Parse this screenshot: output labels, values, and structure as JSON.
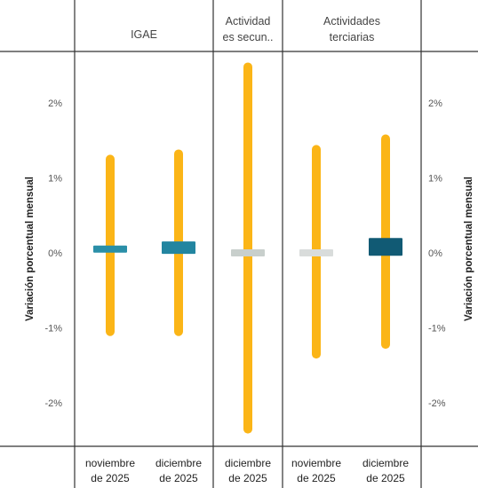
{
  "chart_data": {
    "type": "range-bar",
    "ylabel": "Variación porcentual mensual",
    "ylim": [
      -2.6,
      2.6
    ],
    "y_ticks": [
      {
        "value": 2,
        "label": "2%"
      },
      {
        "value": 1,
        "label": "1%"
      },
      {
        "value": 0,
        "label": "0%"
      },
      {
        "value": -1,
        "label": "-1%"
      },
      {
        "value": -2,
        "label": "-2%"
      }
    ],
    "panels": [
      {
        "title_lines": [
          "IGAE"
        ],
        "count": 2
      },
      {
        "title_lines": [
          "Actividad",
          "es secun.."
        ],
        "count": 1
      },
      {
        "title_lines": [
          "Actividades",
          "terciarias"
        ],
        "count": 2
      }
    ],
    "points": [
      {
        "panel": 0,
        "label_lines": [
          "noviembre",
          "de 2025"
        ],
        "low": -1.05,
        "high": 1.25,
        "value": 0.05,
        "thickness": "thin",
        "color": "#2a8fa8"
      },
      {
        "panel": 0,
        "label_lines": [
          "diciembre",
          "de 2025"
        ],
        "low": -1.05,
        "high": 1.32,
        "value": 0.07,
        "thickness": "medium",
        "color": "#2285a0"
      },
      {
        "panel": 1,
        "label_lines": [
          "diciembre",
          "de 2025"
        ],
        "low": -2.35,
        "high": 2.48,
        "value": 0.0,
        "thickness": "thin",
        "color": "#c8cfcc"
      },
      {
        "panel": 2,
        "label_lines": [
          "noviembre",
          "de 2025"
        ],
        "low": -1.35,
        "high": 1.38,
        "value": 0.0,
        "thickness": "thin",
        "color": "#d9dcdb"
      },
      {
        "panel": 2,
        "label_lines": [
          "diciembre",
          "de 2025"
        ],
        "low": -1.22,
        "high": 1.52,
        "value": 0.08,
        "thickness": "thick",
        "color": "#115a74"
      }
    ],
    "range_color": "#fbb517",
    "grid": false,
    "legend": "none"
  }
}
